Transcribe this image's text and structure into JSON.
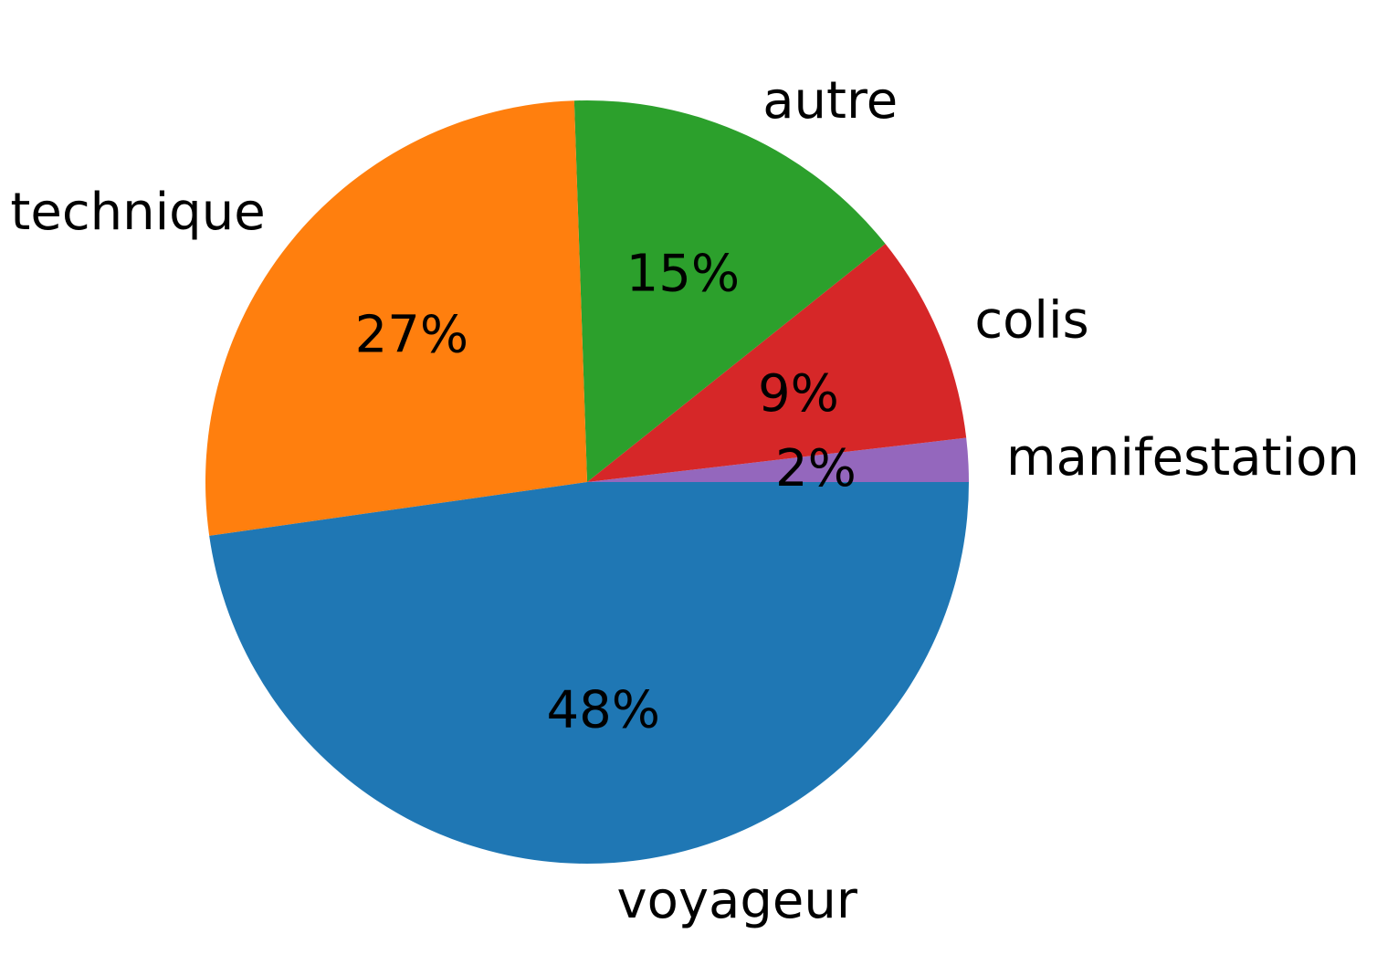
{
  "chart_data": {
    "type": "pie",
    "title": "",
    "counterclock": true,
    "categories": [
      "manifestation",
      "colis",
      "autre",
      "technique",
      "voyageur"
    ],
    "values": [
      1.85,
      8.88,
      14.81,
      26.71,
      47.75
    ],
    "labels_pct": [
      "2%",
      "9%",
      "15%",
      "27%",
      "48%"
    ],
    "colors": [
      "#9467bd",
      "#d62728",
      "#2ca02c",
      "#ff7f0e",
      "#1f77b4"
    ],
    "legend": "none"
  }
}
